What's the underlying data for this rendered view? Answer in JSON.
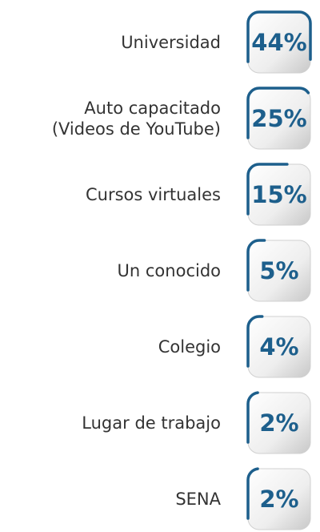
{
  "chart_data": {
    "type": "list",
    "categories": [
      "Universidad",
      "Auto capacitado\n(Videos de YouTube)",
      "Cursos virtuales",
      "Un conocido",
      "Colegio",
      "Lugar de trabajo",
      "SENA"
    ],
    "values": [
      44,
      25,
      15,
      5,
      4,
      2,
      2
    ],
    "value_labels": [
      "44%",
      "25%",
      "15%",
      "5%",
      "4%",
      "2%",
      "2%"
    ],
    "color": "#1d5f8c"
  }
}
